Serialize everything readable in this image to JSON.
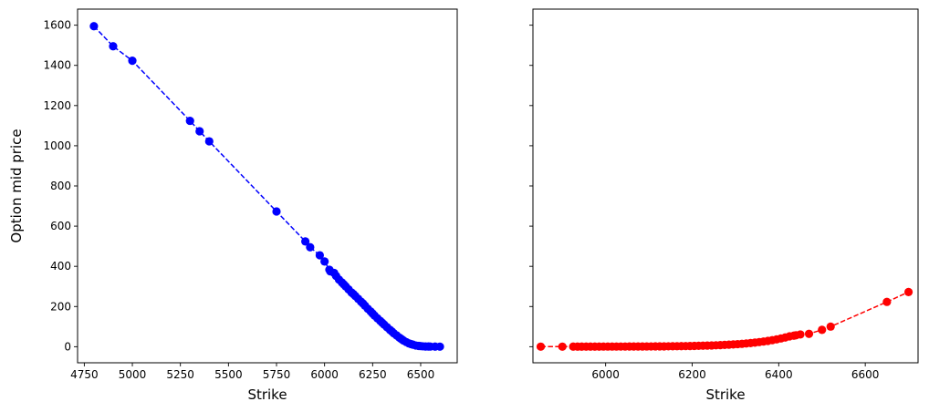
{
  "chart_data": [
    {
      "type": "line",
      "xlabel": "Strike",
      "ylabel": "Option mid price",
      "xlim": [
        4715,
        6690
      ],
      "ylim": [
        -80,
        1680
      ],
      "xticks": [
        4750,
        5000,
        5250,
        5500,
        5750,
        6000,
        6250,
        6500
      ],
      "yticks": [
        0,
        200,
        400,
        600,
        800,
        1000,
        1200,
        1400,
        1600
      ],
      "grid": false,
      "color": "#0000ff",
      "series": [
        {
          "x": [
            4800,
            4900,
            5000,
            5300,
            5350,
            5400,
            5750,
            5900,
            5925,
            5975,
            6000,
            6025,
            6030,
            6050,
            6060,
            6075,
            6090,
            6100,
            6110,
            6125,
            6140,
            6150,
            6160,
            6175,
            6190,
            6200,
            6210,
            6225,
            6240,
            6250,
            6260,
            6275,
            6290,
            6300,
            6310,
            6325,
            6340,
            6350,
            6360,
            6375,
            6390,
            6400,
            6410,
            6425,
            6440,
            6450,
            6460,
            6475,
            6490,
            6500,
            6510,
            6525,
            6540,
            6550,
            6575,
            6600
          ],
          "values": [
            1595,
            1495,
            1423,
            1124,
            1072,
            1022,
            673,
            524,
            495,
            455,
            424,
            383,
            375,
            367,
            352,
            334,
            320,
            310,
            300,
            285,
            270,
            262,
            252,
            238,
            224,
            215,
            204,
            189,
            175,
            165,
            155,
            141,
            128,
            119,
            110,
            97,
            84,
            76,
            67,
            56,
            45,
            38,
            31,
            23,
            16,
            13,
            10,
            6,
            4,
            3,
            2,
            1,
            1,
            0.8,
            0.5,
            0.3
          ]
        }
      ]
    },
    {
      "type": "line",
      "xlabel": "Strike",
      "ylabel": "",
      "xlim": [
        5832,
        6722
      ],
      "ylim": [
        -80,
        1680
      ],
      "xticks": [
        6000,
        6200,
        6400,
        6600
      ],
      "yticks": [
        0,
        200,
        400,
        600,
        800,
        1000,
        1200,
        1400,
        1600
      ],
      "grid": false,
      "color": "#ff0000",
      "series": [
        {
          "x": [
            5850,
            5900,
            5925,
            5935,
            5945,
            5955,
            5965,
            5975,
            5985,
            5995,
            6005,
            6015,
            6025,
            6035,
            6045,
            6055,
            6065,
            6075,
            6085,
            6095,
            6105,
            6115,
            6125,
            6135,
            6145,
            6155,
            6165,
            6175,
            6185,
            6195,
            6205,
            6215,
            6225,
            6235,
            6245,
            6255,
            6265,
            6275,
            6285,
            6295,
            6305,
            6315,
            6325,
            6335,
            6345,
            6355,
            6365,
            6375,
            6385,
            6395,
            6405,
            6415,
            6425,
            6435,
            6440,
            6450,
            6470,
            6500,
            6520,
            6650,
            6700
          ],
          "values": [
            0.3,
            0.3,
            0.4,
            0.4,
            0.5,
            0.5,
            0.5,
            0.6,
            0.6,
            0.7,
            0.7,
            0.8,
            0.8,
            0.9,
            0.9,
            1.0,
            1.0,
            1.1,
            1.2,
            1.3,
            1.4,
            1.5,
            1.6,
            1.8,
            2.0,
            2.2,
            2.5,
            2.8,
            3.1,
            3.5,
            3.9,
            4.4,
            5.0,
            5.6,
            6.3,
            7.1,
            8.0,
            9.0,
            10.1,
            11.4,
            12.8,
            14.4,
            16.2,
            18.2,
            20.5,
            23.0,
            25.8,
            29.0,
            32.5,
            36.5,
            41.0,
            46.0,
            51.5,
            55.0,
            57.0,
            61.0,
            64.0,
            84.0,
            100.0,
            223.0,
            272.0
          ]
        }
      ]
    }
  ]
}
